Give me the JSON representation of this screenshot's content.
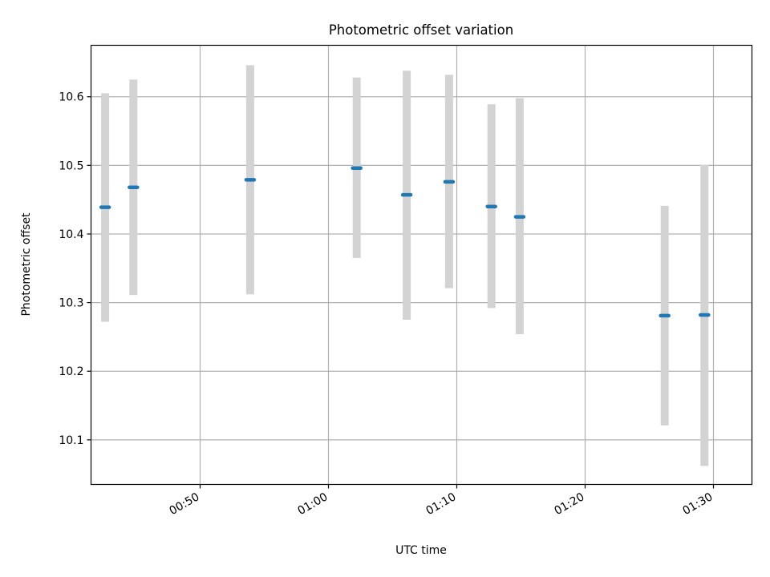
{
  "chart_data": {
    "type": "scatter",
    "title": "Photometric offset variation",
    "xlabel": "UTC time",
    "ylabel": "Photometric offset",
    "x_tick_labels": [
      "00:50",
      "01:00",
      "01:10",
      "01:20",
      "01:30"
    ],
    "x_tick_minutes": [
      50,
      60,
      70,
      80,
      90
    ],
    "y_ticks": [
      10.1,
      10.2,
      10.3,
      10.4,
      10.5,
      10.6
    ],
    "y_tick_labels": [
      "10.1",
      "10.2",
      "10.3",
      "10.4",
      "10.5",
      "10.6"
    ],
    "xlim_minutes": [
      41.5,
      93.0
    ],
    "ylim": [
      10.035,
      10.675
    ],
    "grid": true,
    "colors": {
      "point": "#1f77b4",
      "errorbar": "#d3d3d3",
      "grid": "#b0b0b0"
    },
    "points": [
      {
        "minute": 42.6,
        "y": 10.439,
        "ylow": 10.272,
        "yhigh": 10.605
      },
      {
        "minute": 44.8,
        "y": 10.468,
        "ylow": 10.311,
        "yhigh": 10.625
      },
      {
        "minute": 53.9,
        "y": 10.479,
        "ylow": 10.312,
        "yhigh": 10.646
      },
      {
        "minute": 62.2,
        "y": 10.496,
        "ylow": 10.365,
        "yhigh": 10.628
      },
      {
        "minute": 66.1,
        "y": 10.457,
        "ylow": 10.275,
        "yhigh": 10.638
      },
      {
        "minute": 69.4,
        "y": 10.476,
        "ylow": 10.321,
        "yhigh": 10.632
      },
      {
        "minute": 72.7,
        "y": 10.44,
        "ylow": 10.292,
        "yhigh": 10.589
      },
      {
        "minute": 74.9,
        "y": 10.425,
        "ylow": 10.254,
        "yhigh": 10.598
      },
      {
        "minute": 86.2,
        "y": 10.281,
        "ylow": 10.121,
        "yhigh": 10.441
      },
      {
        "minute": 89.3,
        "y": 10.282,
        "ylow": 10.062,
        "yhigh": 10.501
      }
    ]
  }
}
